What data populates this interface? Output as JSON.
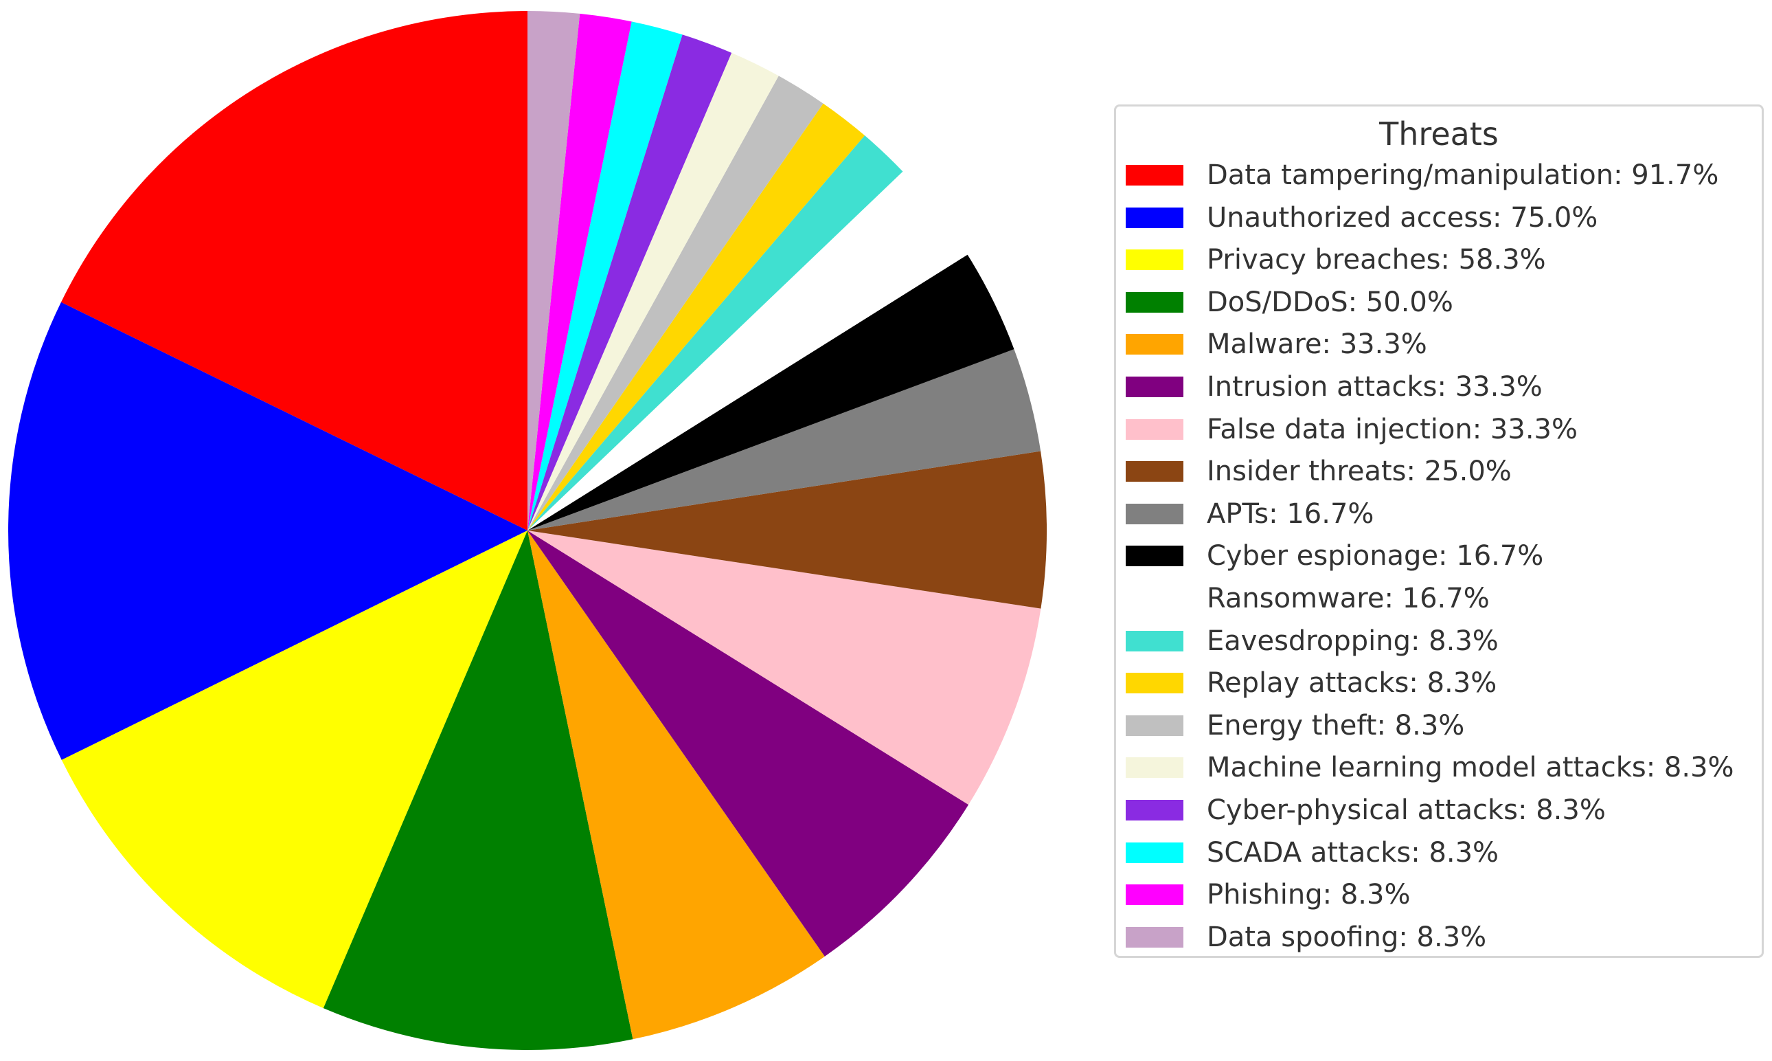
{
  "chart_data": {
    "type": "pie",
    "legend_title": "Threats",
    "legend_position": "right",
    "start_angle_deg": 90,
    "direction": "counterclockwise",
    "slices": [
      {
        "label": "Data tampering/manipulation: 91.7%",
        "value": 91.7,
        "color": "#ff0000"
      },
      {
        "label": "Unauthorized access: 75.0%",
        "value": 75.0,
        "color": "#0000ff"
      },
      {
        "label": "Privacy breaches: 58.3%",
        "value": 58.3,
        "color": "#ffff00"
      },
      {
        "label": "DoS/DDoS: 50.0%",
        "value": 50.0,
        "color": "#008000"
      },
      {
        "label": "Malware: 33.3%",
        "value": 33.3,
        "color": "#ffa500"
      },
      {
        "label": "Intrusion attacks: 33.3%",
        "value": 33.3,
        "color": "#800080"
      },
      {
        "label": "False data injection: 33.3%",
        "value": 33.3,
        "color": "#ffc0cb"
      },
      {
        "label": "Insider threats: 25.0%",
        "value": 25.0,
        "color": "#8b4513"
      },
      {
        "label": "APTs: 16.7%",
        "value": 16.7,
        "color": "#808080"
      },
      {
        "label": "Cyber espionage: 16.7%",
        "value": 16.7,
        "color": "#000000"
      },
      {
        "label": "Ransomware: 16.7%",
        "value": 16.7,
        "color": "#ffffff"
      },
      {
        "label": "Eavesdropping: 8.3%",
        "value": 8.3,
        "color": "#40e0d0"
      },
      {
        "label": "Replay attacks: 8.3%",
        "value": 8.3,
        "color": "#ffd700"
      },
      {
        "label": "Energy theft: 8.3%",
        "value": 8.3,
        "color": "#c0c0c0"
      },
      {
        "label": "Machine learning model attacks: 8.3%",
        "value": 8.3,
        "color": "#f5f5dc"
      },
      {
        "label": "Cyber-physical attacks: 8.3%",
        "value": 8.3,
        "color": "#8a2be2"
      },
      {
        "label": "SCADA attacks: 8.3%",
        "value": 8.3,
        "color": "#00ffff"
      },
      {
        "label": "Phishing: 8.3%",
        "value": 8.3,
        "color": "#ff00ff"
      },
      {
        "label": "Data spoofing: 8.3%",
        "value": 8.3,
        "color": "#c8a2c8"
      }
    ]
  }
}
